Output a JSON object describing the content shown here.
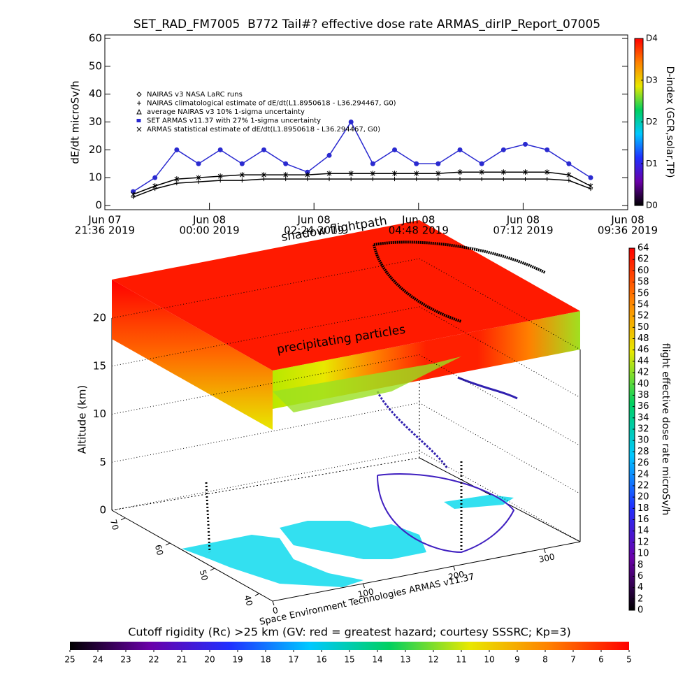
{
  "chart_data": [
    {
      "type": "line",
      "title": "SET_RAD_FM7005  B772 Tail#? effective dose rate ARMAS_dirIP_Report_07005",
      "y_label": "dE/dt microSv/h",
      "xlim": [
        "2019-06-07 21:36",
        "2019-06-08 09:36"
      ],
      "xticks": [
        {
          "value": "2019-06-07 21:36",
          "label": [
            "Jun 07",
            "21:36 2019"
          ]
        },
        {
          "value": "2019-06-08 00:00",
          "label": [
            "Jun 08",
            "00:00 2019"
          ]
        },
        {
          "value": "2019-06-08 02:24",
          "label": [
            "Jun 08",
            "02:24 2019"
          ]
        },
        {
          "value": "2019-06-08 04:48",
          "label": [
            "Jun 08",
            "04:48 2019"
          ]
        },
        {
          "value": "2019-06-08 07:12",
          "label": [
            "Jun 08",
            "07:12 2019"
          ]
        },
        {
          "value": "2019-06-08 09:36",
          "label": [
            "Jun 08",
            "09:36 2019"
          ]
        }
      ],
      "ylim": [
        0,
        60
      ],
      "yticks": [
        0,
        10,
        20,
        30,
        40,
        50,
        60
      ],
      "legend": "upper left",
      "x": [
        "2019-06-07 22:15",
        "2019-06-07 22:45",
        "2019-06-07 23:15",
        "2019-06-07 23:45",
        "2019-06-08 00:15",
        "2019-06-08 00:45",
        "2019-06-08 01:15",
        "2019-06-08 01:45",
        "2019-06-08 02:15",
        "2019-06-08 02:45",
        "2019-06-08 03:15",
        "2019-06-08 03:45",
        "2019-06-08 04:15",
        "2019-06-08 04:45",
        "2019-06-08 05:15",
        "2019-06-08 05:45",
        "2019-06-08 06:15",
        "2019-06-08 06:45",
        "2019-06-08 07:15",
        "2019-06-08 07:45",
        "2019-06-08 08:15",
        "2019-06-08 08:45"
      ],
      "series": [
        {
          "name": "NAIRAS v3 NASA LaRC runs",
          "marker": "diamond",
          "color": "#000000",
          "values": [
            null,
            null,
            null,
            null,
            null,
            null,
            null,
            null,
            null,
            null,
            null,
            null,
            null,
            null,
            null,
            null,
            null,
            null,
            null,
            null,
            null,
            null
          ]
        },
        {
          "name": "NAIRAS climatological estimate of dE/dt(L1.8950618 - L36.294467, G0)",
          "marker": "plus",
          "color": "#000000",
          "values": [
            3,
            6,
            8,
            8.5,
            9,
            9,
            9.5,
            9.5,
            9.5,
            9.5,
            9.5,
            9.5,
            9.5,
            9.5,
            9.5,
            9.5,
            9.5,
            9.5,
            9.5,
            9.5,
            9,
            6
          ]
        },
        {
          "name": "average NAIRAS v3 10% 1-sigma uncertainty",
          "marker": "triangle",
          "color": "#000000",
          "values": [
            null,
            null,
            null,
            null,
            null,
            null,
            null,
            null,
            null,
            null,
            null,
            null,
            null,
            null,
            null,
            null,
            null,
            null,
            null,
            null,
            null,
            null
          ]
        },
        {
          "name": "SET ARMAS v11.37 with 27% 1-sigma uncertainty",
          "marker": "dot",
          "color": "#2a2ad0",
          "values": [
            5,
            10,
            20,
            15,
            20,
            15,
            20,
            15,
            12,
            18,
            30,
            15,
            20,
            15,
            15,
            20,
            15,
            20,
            22,
            20,
            15,
            10
          ]
        },
        {
          "name": "ARMAS statistical estimate of dE/dt(L1.8950618 - L36.294467, G0)",
          "marker": "star",
          "color": "#000000",
          "values": [
            4,
            7,
            9.5,
            10,
            10.5,
            11,
            11,
            11,
            11,
            11.5,
            11.5,
            11.5,
            11.5,
            11.5,
            11.5,
            12,
            12,
            12,
            12,
            12,
            11,
            7
          ]
        }
      ]
    },
    {
      "type": "colorbar",
      "label": "D-index (GCR,solar,TP)",
      "orientation": "vertical",
      "ylim": [
        0,
        4
      ],
      "yticks": [
        {
          "value": 0,
          "label": "D0"
        },
        {
          "value": 1,
          "label": "D1"
        },
        {
          "value": 2,
          "label": "D2"
        },
        {
          "value": 3,
          "label": "D3"
        },
        {
          "value": 4,
          "label": "D4"
        }
      ],
      "colors": [
        "#000000",
        "#6a00a8",
        "#2030ff",
        "#00c8ff",
        "#00d060",
        "#e8e800",
        "#ff8000",
        "#ff0000"
      ]
    },
    {
      "type": "surface3d",
      "title": "shadow flightpath",
      "annotations": [
        "precipitating particles"
      ],
      "z_label": "Altitude (km)",
      "zlim": [
        0,
        25
      ],
      "zticks": [
        0,
        5,
        10,
        15,
        20
      ],
      "ylim": [
        73,
        37
      ],
      "yticks": [
        70,
        60,
        50,
        40
      ],
      "xlim": [
        0,
        340
      ],
      "xticks": [
        0,
        100,
        200,
        300
      ],
      "credit": "Space Environment Technologies ARMAS v11.37"
    },
    {
      "type": "colorbar",
      "label": "flight effective dose rate microSv/h",
      "orientation": "vertical",
      "ylim": [
        0,
        64
      ],
      "yticks": [
        0,
        2,
        4,
        6,
        8,
        10,
        12,
        14,
        16,
        18,
        20,
        22,
        24,
        26,
        28,
        30,
        32,
        34,
        36,
        38,
        40,
        42,
        44,
        46,
        48,
        50,
        52,
        54,
        56,
        58,
        60,
        62,
        64
      ],
      "colors": [
        "#000000",
        "#6a00a8",
        "#2030ff",
        "#00c8ff",
        "#00d060",
        "#e8e800",
        "#ff8000",
        "#ff0000"
      ]
    },
    {
      "type": "colorbar",
      "title": "Cutoff rigidity (Rc) >25 km (GV: red = greatest hazard; courtesy SSSRC; Kp=3)",
      "orientation": "horizontal",
      "xlim": [
        25,
        5
      ],
      "xticks": [
        25,
        24,
        23,
        22,
        21,
        20,
        19,
        18,
        17,
        16,
        15,
        14,
        13,
        12,
        11,
        10,
        9,
        8,
        7,
        6,
        5
      ],
      "colors": [
        "#000000",
        "#6a00a8",
        "#2030ff",
        "#00c8ff",
        "#00d060",
        "#e8e800",
        "#ff8000",
        "#ff0000"
      ]
    }
  ]
}
